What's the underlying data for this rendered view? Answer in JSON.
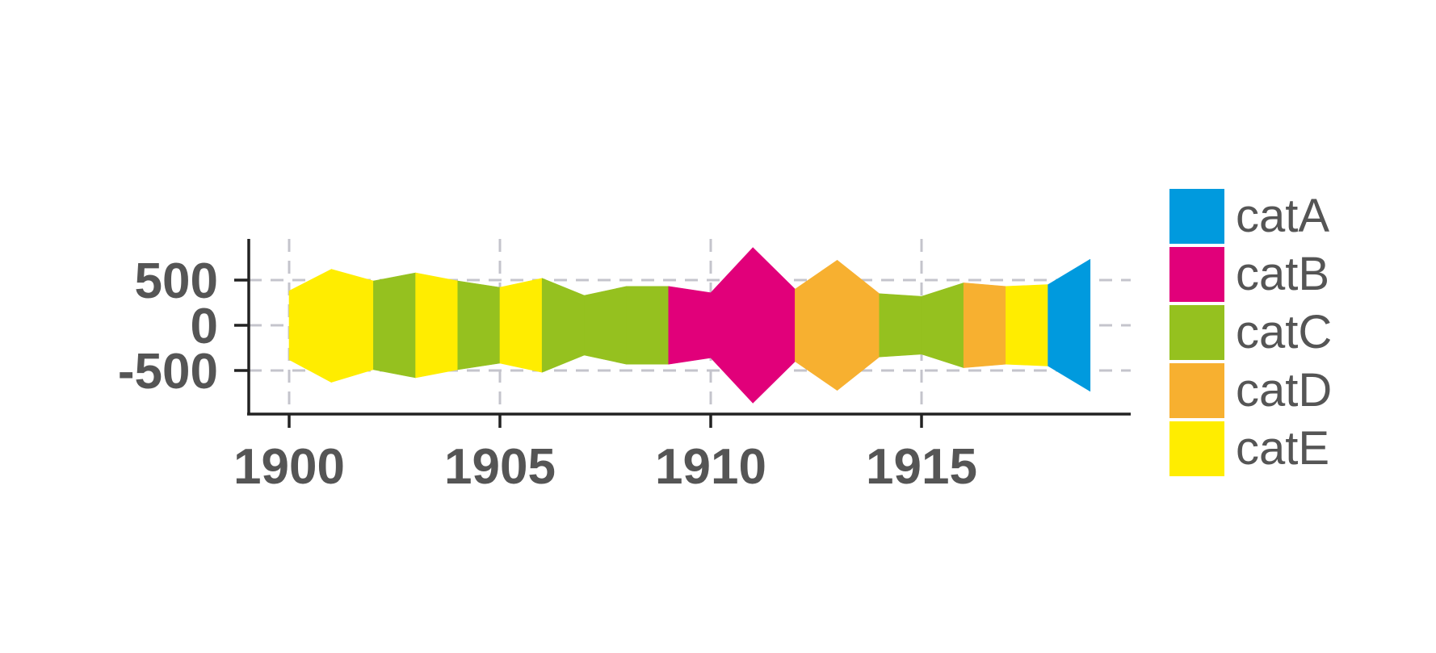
{
  "chart_data": {
    "type": "area",
    "x": [
      1900,
      1901,
      1902,
      1903,
      1904,
      1905,
      1906,
      1907,
      1908,
      1909,
      1910,
      1911,
      1912,
      1913,
      1914,
      1915,
      1916,
      1917,
      1918,
      1919
    ],
    "upper": [
      380,
      620,
      490,
      580,
      490,
      420,
      520,
      330,
      430,
      430,
      360,
      860,
      400,
      720,
      350,
      320,
      470,
      430,
      450,
      730
    ],
    "lower": [
      -380,
      -630,
      -490,
      -580,
      -490,
      -420,
      -520,
      -330,
      -430,
      -430,
      -360,
      -860,
      -400,
      -720,
      -350,
      -320,
      -470,
      -430,
      -450,
      -730
    ],
    "category": [
      "catE",
      "catE",
      "catC",
      "catE",
      "catC",
      "catE",
      "catC",
      "catC",
      "catC",
      "catB",
      "catB",
      "catB",
      "catD",
      "catD",
      "catC",
      "catC",
      "catD",
      "catE",
      "catA",
      "catB"
    ],
    "x_ticks": [
      {
        "value": 1900,
        "label": "1900"
      },
      {
        "value": 1905,
        "label": "1905"
      },
      {
        "value": 1910,
        "label": "1910"
      },
      {
        "value": 1915,
        "label": "1915"
      }
    ],
    "y_ticks": [
      {
        "value": 500,
        "label": "500"
      },
      {
        "value": 0,
        "label": "0"
      },
      {
        "value": -500,
        "label": "-500"
      }
    ],
    "xlim": [
      1899,
      1920
    ],
    "ylim": [
      -980,
      960
    ],
    "grid": true,
    "legend_position": "right",
    "legend": [
      {
        "name": "catA",
        "color": "#009ADE"
      },
      {
        "name": "catB",
        "color": "#E1007A"
      },
      {
        "name": "catC",
        "color": "#95C11F"
      },
      {
        "name": "catD",
        "color": "#F7B030"
      },
      {
        "name": "catE",
        "color": "#FFED00"
      }
    ]
  }
}
